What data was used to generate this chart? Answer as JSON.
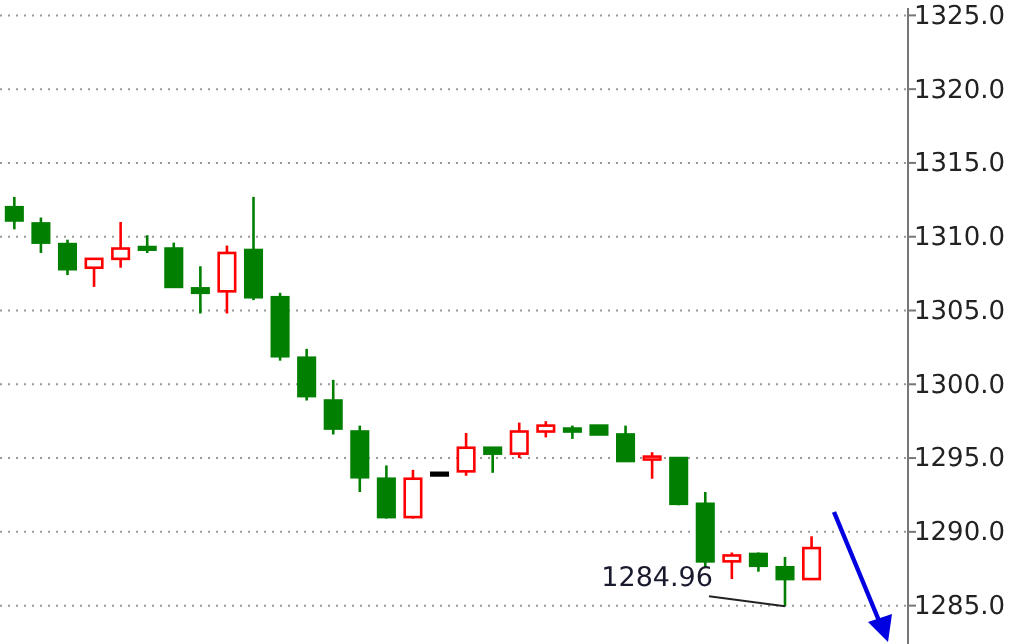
{
  "chart_data": {
    "type": "candlestick",
    "categories": [
      null,
      null,
      null,
      null,
      null,
      null,
      null,
      null,
      null,
      null,
      null,
      null,
      null,
      null,
      null,
      null,
      null,
      null,
      null,
      null,
      null,
      null,
      null,
      null,
      null,
      null,
      null,
      null,
      null,
      null,
      null
    ],
    "ohlc": [
      [
        1312.0,
        1312.7,
        1310.5,
        1311.1
      ],
      [
        1310.9,
        1311.3,
        1308.9,
        1309.6
      ],
      [
        1309.5,
        1309.8,
        1307.4,
        1307.8
      ],
      [
        1307.9,
        1308.5,
        1306.6,
        1308.5
      ],
      [
        1308.5,
        1311.0,
        1307.9,
        1309.2
      ],
      [
        1309.3,
        1310.1,
        1308.9,
        1309.2
      ],
      [
        1309.2,
        1309.6,
        1306.6,
        1306.6
      ],
      [
        1306.5,
        1308.0,
        1304.8,
        1306.2
      ],
      [
        1306.3,
        1309.4,
        1304.8,
        1308.9
      ],
      [
        1309.1,
        1312.7,
        1305.7,
        1305.9
      ],
      [
        1305.9,
        1306.2,
        1301.6,
        1301.9
      ],
      [
        1301.8,
        1302.4,
        1298.9,
        1299.2
      ],
      [
        1298.9,
        1300.3,
        1296.6,
        1297.0
      ],
      [
        1296.8,
        1297.2,
        1292.7,
        1293.7
      ],
      [
        1293.6,
        1294.5,
        1290.9,
        1291.0
      ],
      [
        1291.0,
        1294.2,
        1290.9,
        1293.6
      ],
      [
        1294.0,
        1294.0,
        1294.0,
        1294.0
      ],
      [
        1294.1,
        1296.7,
        1293.8,
        1295.7
      ],
      [
        1295.7,
        1295.7,
        1294.0,
        1295.3
      ],
      [
        1295.3,
        1297.4,
        1295.0,
        1296.8
      ],
      [
        1296.8,
        1297.5,
        1296.4,
        1297.2
      ],
      [
        1297.0,
        1297.2,
        1296.3,
        1296.8
      ],
      [
        1297.2,
        1297.2,
        1296.6,
        1296.6
      ],
      [
        1296.6,
        1297.2,
        1294.8,
        1294.8
      ],
      [
        1294.9,
        1295.4,
        1293.6,
        1295.1
      ],
      [
        1295.0,
        1295.0,
        1291.8,
        1291.9
      ],
      [
        1291.9,
        1292.7,
        1287.6,
        1288.0
      ],
      [
        1288.0,
        1288.6,
        1286.8,
        1288.4
      ],
      [
        1288.5,
        1288.6,
        1287.3,
        1287.7
      ],
      [
        1287.6,
        1288.3,
        1284.96,
        1286.8
      ],
      [
        1286.8,
        1289.7,
        1286.8,
        1288.9
      ]
    ],
    "colors": [
      "#007f00",
      "#007f00",
      "#007f00",
      "#ff0000",
      "#ff0000",
      "#007f00",
      "#007f00",
      "#007f00",
      "#ff0000",
      "#007f00",
      "#007f00",
      "#007f00",
      "#007f00",
      "#007f00",
      "#007f00",
      "#ff0000",
      "#000000",
      "#ff0000",
      "#007f00",
      "#ff0000",
      "#ff0000",
      "#007f00",
      "#007f00",
      "#007f00",
      "#ff0000",
      "#007f00",
      "#007f00",
      "#ff0000",
      "#007f00",
      "#007f00",
      "#ff0000"
    ],
    "ylim": [
      1282.4,
      1325.5
    ],
    "yticks": [
      {
        "value": 1285,
        "label": "1285.0"
      },
      {
        "value": 1290,
        "label": "1290.0"
      },
      {
        "value": 1295,
        "label": "1295.0"
      },
      {
        "value": 1300,
        "label": "1300.0"
      },
      {
        "value": 1305,
        "label": "1305.0"
      },
      {
        "value": 1310,
        "label": "1310.0"
      },
      {
        "value": 1315,
        "label": "1315.0"
      },
      {
        "value": 1320,
        "label": "1320.0"
      },
      {
        "value": 1325,
        "label": "1325.0"
      }
    ],
    "grid": "y",
    "tick_labels": "y",
    "annotations": [
      "1284.96"
    ]
  }
}
